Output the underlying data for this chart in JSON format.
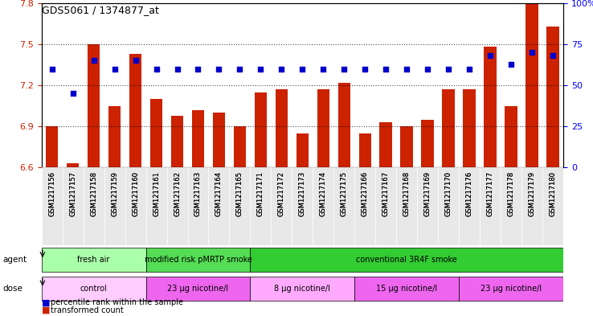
{
  "title": "GDS5061 / 1374877_at",
  "samples": [
    "GSM1217156",
    "GSM1217157",
    "GSM1217158",
    "GSM1217159",
    "GSM1217160",
    "GSM1217161",
    "GSM1217162",
    "GSM1217163",
    "GSM1217164",
    "GSM1217165",
    "GSM1217171",
    "GSM1217172",
    "GSM1217173",
    "GSM1217174",
    "GSM1217175",
    "GSM1217166",
    "GSM1217167",
    "GSM1217168",
    "GSM1217169",
    "GSM1217170",
    "GSM1217176",
    "GSM1217177",
    "GSM1217178",
    "GSM1217179",
    "GSM1217180"
  ],
  "bar_values": [
    6.9,
    6.63,
    7.5,
    7.05,
    7.43,
    7.1,
    6.98,
    7.02,
    7.0,
    6.9,
    7.15,
    7.17,
    6.85,
    7.17,
    7.22,
    6.85,
    6.93,
    6.9,
    6.95,
    7.17,
    7.17,
    7.48,
    7.05,
    7.8,
    7.63
  ],
  "percentile_values": [
    60,
    45,
    65,
    60,
    65,
    60,
    60,
    60,
    60,
    60,
    60,
    60,
    60,
    60,
    60,
    60,
    60,
    60,
    60,
    60,
    60,
    68,
    63,
    70,
    68
  ],
  "bar_color": "#cc2200",
  "dot_color": "#0000cc",
  "ylim_left": [
    6.6,
    7.8
  ],
  "ylim_right": [
    0,
    100
  ],
  "yticks_left": [
    6.6,
    6.9,
    7.2,
    7.5,
    7.8
  ],
  "yticks_right": [
    0,
    25,
    50,
    75,
    100
  ],
  "ytick_labels_right": [
    "0",
    "25",
    "50",
    "75",
    "100%"
  ],
  "dotted_lines": [
    6.9,
    7.2,
    7.5
  ],
  "agent_groups": [
    {
      "label": "fresh air",
      "start": 0,
      "end": 4,
      "color": "#aaffaa"
    },
    {
      "label": "modified risk pMRTP smoke",
      "start": 5,
      "end": 9,
      "color": "#55dd55"
    },
    {
      "label": "conventional 3R4F smoke",
      "start": 10,
      "end": 24,
      "color": "#33cc33"
    }
  ],
  "dose_groups": [
    {
      "label": "control",
      "start": 0,
      "end": 4,
      "color": "#ffccff"
    },
    {
      "label": "23 μg nicotine/l",
      "start": 5,
      "end": 9,
      "color": "#ee66ee"
    },
    {
      "label": "8 μg nicotine/l",
      "start": 10,
      "end": 14,
      "color": "#ffaaff"
    },
    {
      "label": "15 μg nicotine/l",
      "start": 15,
      "end": 19,
      "color": "#ee66ee"
    },
    {
      "label": "23 μg nicotine/l",
      "start": 20,
      "end": 24,
      "color": "#ee66ee"
    }
  ],
  "legend_items": [
    {
      "label": "transformed count",
      "color": "#cc2200"
    },
    {
      "label": "percentile rank within the sample",
      "color": "#0000cc"
    }
  ]
}
